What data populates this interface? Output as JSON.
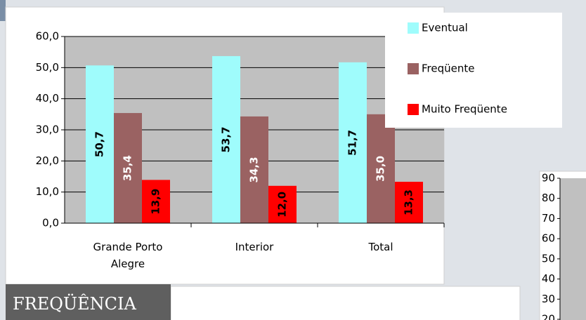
{
  "chart_data": [
    {
      "type": "bar",
      "categories": [
        "Grande Porto Alegre",
        "Interior",
        "Total"
      ],
      "series": [
        {
          "name": "Eventual",
          "color": "#9ffcfc",
          "values": [
            50.7,
            53.7,
            51.7
          ],
          "value_labels": [
            "50,7",
            "53,7",
            "51,7"
          ],
          "label_color": "#000000"
        },
        {
          "name": "Freqüente",
          "color": "#9a6262",
          "values": [
            35.4,
            34.3,
            35.0
          ],
          "value_labels": [
            "35,4",
            "34,3",
            "35,0"
          ],
          "label_color": "#ffffff"
        },
        {
          "name": "Muito Freqüente",
          "color": "#ff0000",
          "values": [
            13.9,
            12.0,
            13.3
          ],
          "value_labels": [
            "13,9",
            "12,0",
            "13,3"
          ],
          "label_color": "#000000"
        }
      ],
      "ylim": [
        0,
        60
      ],
      "yticks": [
        {
          "value": 0,
          "label": "0,0"
        },
        {
          "value": 10,
          "label": "10,0"
        },
        {
          "value": 20,
          "label": "20,0"
        },
        {
          "value": 30,
          "label": "30,0"
        },
        {
          "value": 40,
          "label": "40,0"
        },
        {
          "value": 50,
          "label": "50,0"
        },
        {
          "value": 60,
          "label": "60,0"
        }
      ],
      "grid": true,
      "legend": "top-right"
    },
    {
      "type": "bar",
      "ylim": [
        20,
        90
      ],
      "yticks": [
        20,
        30,
        40,
        50,
        60,
        70,
        80,
        90
      ]
    }
  ],
  "section_title": "FREQÜÊNCIA"
}
